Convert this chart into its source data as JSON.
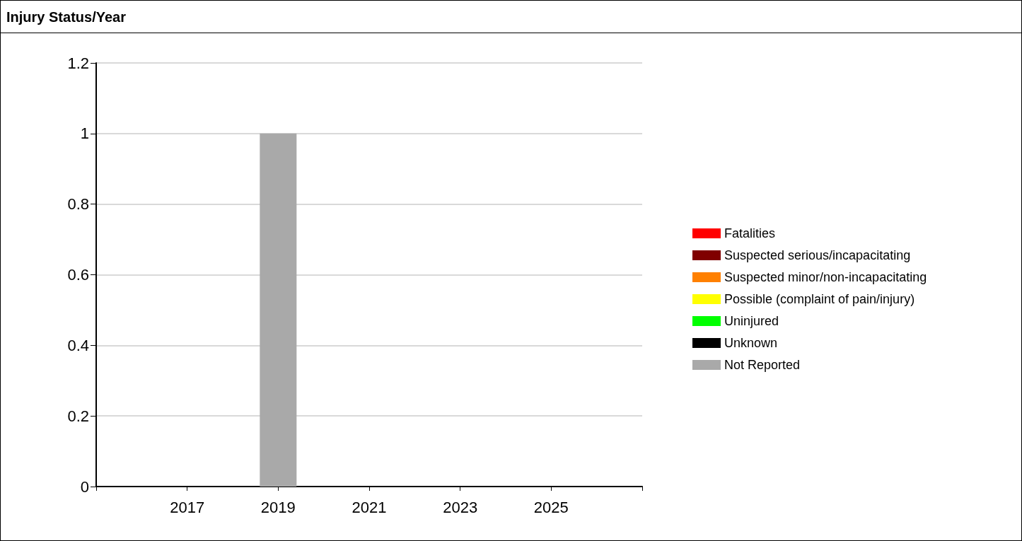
{
  "chart_data": {
    "type": "bar",
    "title": "Injury Status/Year",
    "stacked": true,
    "x": [
      2019
    ],
    "xlim": [
      2015,
      2027
    ],
    "xticks": [
      {
        "value": 2015,
        "label": null
      },
      2017,
      2019,
      2021,
      2023,
      2025,
      {
        "value": 2027,
        "label": null
      }
    ],
    "ylim": [
      0,
      1.2
    ],
    "yticks": [
      0,
      0.2,
      0.4,
      0.6,
      0.8,
      1,
      1.2
    ],
    "grid": "y",
    "legend": "right",
    "series": [
      {
        "name": "Fatalities",
        "color": "#ff0000",
        "values": [
          0
        ]
      },
      {
        "name": "Suspected serious/incapacitating",
        "color": "#800000",
        "values": [
          0
        ]
      },
      {
        "name": "Suspected minor/non-incapacitating",
        "color": "#ff8000",
        "values": [
          0
        ]
      },
      {
        "name": "Possible (complaint of pain/injury)",
        "color": "#ffff00",
        "values": [
          0
        ]
      },
      {
        "name": "Uninjured",
        "color": "#00ff00",
        "values": [
          0
        ]
      },
      {
        "name": "Unknown",
        "color": "#000000",
        "values": [
          0
        ]
      },
      {
        "name": "Not Reported",
        "color": "#a9a9a9",
        "values": [
          1
        ]
      }
    ]
  }
}
